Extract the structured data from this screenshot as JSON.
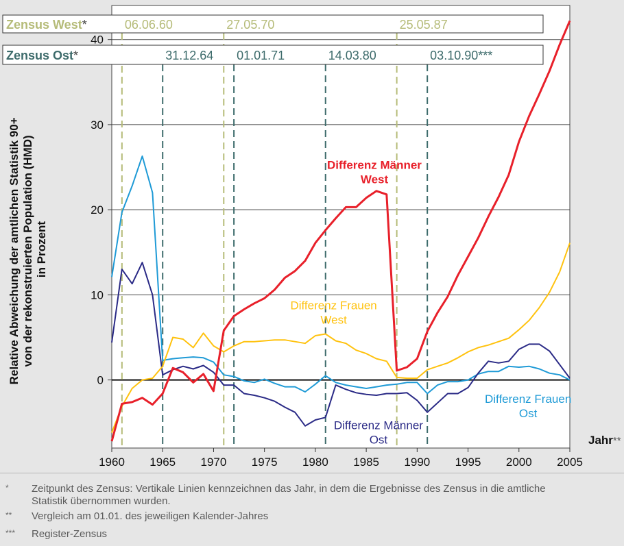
{
  "chart_data": {
    "type": "line",
    "ylabel_lines": [
      "Relative Abweichung der amtlichen Statistik 90+",
      "von der rekonstruierten Population (HMD)",
      "in Prozent"
    ],
    "xlabel": "Jahr",
    "xlabel_mark": "**",
    "xlim": [
      1960,
      2005
    ],
    "ylim": [
      -8,
      44
    ],
    "x_ticks": [
      1960,
      1965,
      1970,
      1975,
      1980,
      1985,
      1990,
      1995,
      2000,
      2005
    ],
    "y_ticks": [
      0,
      10,
      20,
      30,
      40
    ],
    "grid": true,
    "census_west": {
      "label": "Zensus West",
      "mark": "*",
      "color": "#b5bb78",
      "years": [
        1961,
        1971,
        1988
      ],
      "dates": [
        "06.06.60",
        "27.05.70",
        "25.05.87"
      ]
    },
    "census_east": {
      "label": "Zensus Ost",
      "mark": "*",
      "color": "#3d6b6b",
      "years": [
        1965,
        1972,
        1981,
        1991
      ],
      "dates": [
        "31.12.64",
        "01.01.71",
        "14.03.80",
        "03.10.90***"
      ]
    },
    "series": [
      {
        "name": "Differenz Männer West",
        "label_lines": [
          "Differenz Männer",
          "West"
        ],
        "color": "#e8202a",
        "bold": true,
        "x": [
          1960,
          1961,
          1962,
          1963,
          1964,
          1965,
          1966,
          1967,
          1968,
          1969,
          1970,
          1971,
          1972,
          1973,
          1974,
          1975,
          1976,
          1977,
          1978,
          1979,
          1980,
          1981,
          1982,
          1983,
          1984,
          1985,
          1986,
          1987,
          1988,
          1989,
          1990,
          1991,
          1992,
          1993,
          1994,
          1995,
          1996,
          1997,
          1998,
          1999,
          2000,
          2001,
          2002,
          2003,
          2004,
          2005
        ],
        "values": [
          -7.2,
          -2.8,
          -2.6,
          -2.1,
          -2.9,
          -1.6,
          1.4,
          0.9,
          -0.3,
          0.7,
          -1.3,
          5.8,
          7.5,
          8.3,
          9.0,
          9.6,
          10.6,
          12.0,
          12.8,
          14.0,
          16.1,
          17.6,
          19.0,
          20.3,
          20.3,
          21.4,
          22.2,
          21.8,
          1.1,
          1.5,
          2.5,
          5.7,
          7.9,
          9.8,
          12.3,
          14.5,
          16.7,
          19.2,
          21.5,
          24.1,
          28.0,
          31.0,
          33.6,
          36.3,
          39.4,
          42.2
        ]
      },
      {
        "name": "Differenz Frauen West",
        "label_lines": [
          "Differenz Frauen",
          "West"
        ],
        "color": "#ffc20e",
        "bold": false,
        "x": [
          1960,
          1961,
          1962,
          1963,
          1964,
          1965,
          1966,
          1967,
          1968,
          1969,
          1970,
          1971,
          1972,
          1973,
          1974,
          1975,
          1976,
          1977,
          1978,
          1979,
          1980,
          1981,
          1982,
          1983,
          1984,
          1985,
          1986,
          1987,
          1988,
          1989,
          1990,
          1991,
          1992,
          1993,
          1994,
          1995,
          1996,
          1997,
          1998,
          1999,
          2000,
          2001,
          2002,
          2003,
          2004,
          2005
        ],
        "values": [
          -6.2,
          -3.1,
          -1.0,
          0.0,
          0.2,
          1.6,
          5.0,
          4.8,
          3.8,
          5.5,
          4.0,
          3.3,
          4.0,
          4.5,
          4.5,
          4.6,
          4.7,
          4.7,
          4.5,
          4.3,
          5.2,
          5.4,
          4.6,
          4.3,
          3.5,
          3.1,
          2.5,
          2.2,
          0.3,
          0.2,
          0.2,
          1.2,
          1.6,
          2.0,
          2.6,
          3.3,
          3.8,
          4.1,
          4.5,
          4.9,
          5.9,
          7.0,
          8.5,
          10.3,
          12.7,
          16.1
        ]
      },
      {
        "name": "Differenz Männer Ost",
        "label_lines": [
          "Differenz Männer",
          "Ost"
        ],
        "color": "#2a2a86",
        "bold": false,
        "x": [
          1960,
          1961,
          1962,
          1963,
          1964,
          1965,
          1966,
          1967,
          1968,
          1969,
          1970,
          1971,
          1972,
          1973,
          1974,
          1975,
          1976,
          1977,
          1978,
          1979,
          1980,
          1981,
          1982,
          1983,
          1984,
          1985,
          1986,
          1987,
          1988,
          1989,
          1990,
          1991,
          1992,
          1993,
          1994,
          1995,
          1996,
          1997,
          1998,
          1999,
          2000,
          2001,
          2002,
          2003,
          2004,
          2005
        ],
        "values": [
          4.4,
          13.0,
          11.3,
          13.8,
          10.0,
          0.6,
          1.2,
          1.6,
          1.3,
          1.7,
          0.9,
          -0.6,
          -0.6,
          -1.6,
          -1.8,
          -2.1,
          -2.5,
          -3.2,
          -3.8,
          -5.4,
          -4.7,
          -4.4,
          -0.6,
          -1.1,
          -1.5,
          -1.7,
          -1.8,
          -1.6,
          -1.6,
          -1.5,
          -2.4,
          -3.8,
          -2.7,
          -1.6,
          -1.6,
          -0.9,
          0.8,
          2.2,
          2.0,
          2.2,
          3.6,
          4.2,
          4.2,
          3.4,
          1.8,
          0.2
        ]
      },
      {
        "name": "Differenz Frauen Ost",
        "label_lines": [
          "Differenz Frauen",
          "Ost"
        ],
        "color": "#1e9ad6",
        "bold": false,
        "x": [
          1960,
          1961,
          1962,
          1963,
          1964,
          1965,
          1966,
          1967,
          1968,
          1969,
          1970,
          1971,
          1972,
          1973,
          1974,
          1975,
          1976,
          1977,
          1978,
          1979,
          1980,
          1981,
          1982,
          1983,
          1984,
          1985,
          1986,
          1987,
          1988,
          1989,
          1990,
          1991,
          1992,
          1993,
          1994,
          1995,
          1996,
          1997,
          1998,
          1999,
          2000,
          2001,
          2002,
          2003,
          2004,
          2005
        ],
        "values": [
          12.1,
          19.7,
          22.8,
          26.3,
          22.0,
          2.3,
          2.5,
          2.6,
          2.7,
          2.6,
          2.1,
          0.6,
          0.4,
          -0.1,
          -0.3,
          0.1,
          -0.4,
          -0.8,
          -0.8,
          -1.4,
          -0.5,
          0.5,
          -0.3,
          -0.6,
          -0.8,
          -1.0,
          -0.8,
          -0.6,
          -0.5,
          -0.3,
          -0.3,
          -1.6,
          -0.6,
          -0.2,
          -0.2,
          0.0,
          0.7,
          1.0,
          1.0,
          1.6,
          1.5,
          1.6,
          1.3,
          0.8,
          0.6,
          0.0
        ]
      }
    ]
  },
  "footnotes": [
    {
      "mark": "*",
      "text": "Zeitpunkt des Zensus: Vertikale Linien kennzeichnen das Jahr, in dem die Ergebnisse des Zensus in die amtliche Statistik übernommen wurden."
    },
    {
      "mark": "**",
      "text": "Vergleich am 01.01. des jeweiligen Kalender-Jahres"
    },
    {
      "mark": "***",
      "text": "Register-Zensus"
    }
  ]
}
